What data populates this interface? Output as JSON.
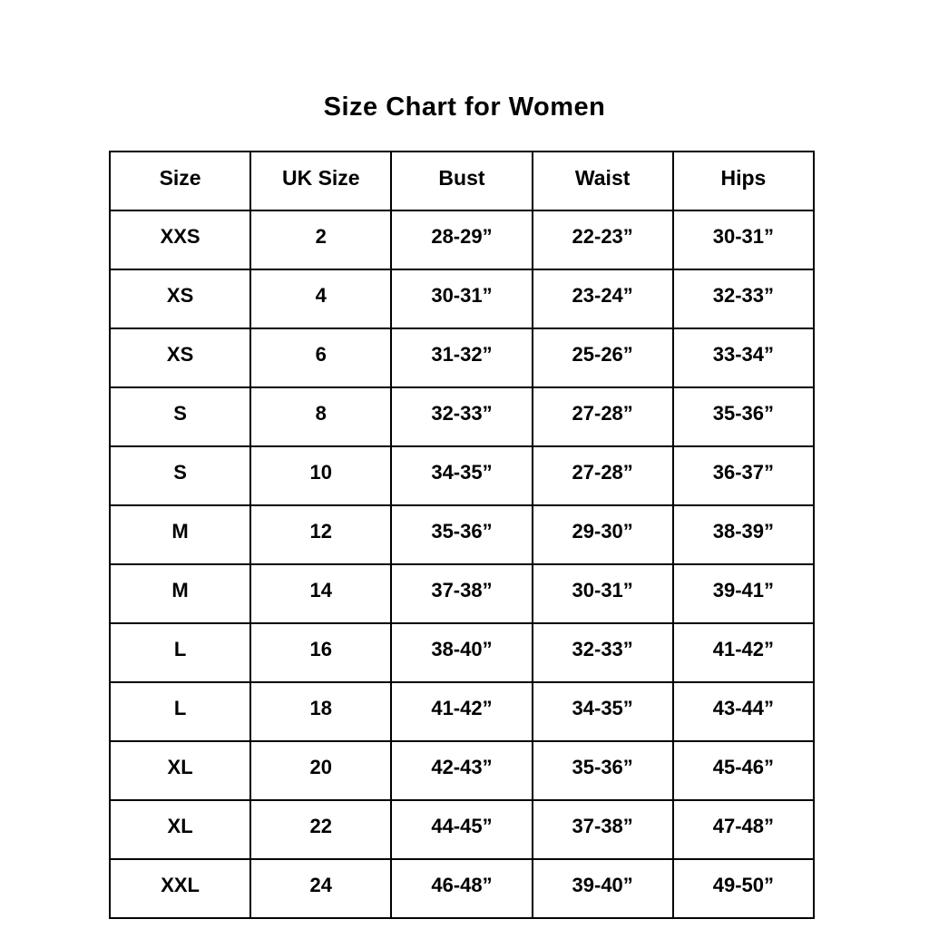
{
  "page": {
    "background_color": "#ffffff",
    "text_color": "#000000",
    "border_color": "#000000"
  },
  "title": "Size Chart for Women",
  "chart_data": {
    "type": "table",
    "title": "Size Chart for Women",
    "headers": [
      "Size",
      "UK Size",
      "Bust",
      "Waist",
      "Hips"
    ],
    "rows": [
      [
        "XXS",
        "2",
        "28-29”",
        "22-23”",
        "30-31”"
      ],
      [
        "XS",
        "4",
        "30-31”",
        "23-24”",
        "32-33”"
      ],
      [
        "XS",
        "6",
        "31-32”",
        "25-26”",
        "33-34”"
      ],
      [
        "S",
        "8",
        "32-33”",
        "27-28”",
        "35-36”"
      ],
      [
        "S",
        "10",
        "34-35”",
        "27-28”",
        "36-37”"
      ],
      [
        "M",
        "12",
        "35-36”",
        "29-30”",
        "38-39”"
      ],
      [
        "M",
        "14",
        "37-38”",
        "30-31”",
        "39-41”"
      ],
      [
        "L",
        "16",
        "38-40”",
        "32-33”",
        "41-42”"
      ],
      [
        "L",
        "18",
        "41-42”",
        "34-35”",
        "43-44”"
      ],
      [
        "XL",
        "20",
        "42-43”",
        "35-36”",
        "45-46”"
      ],
      [
        "XL",
        "22",
        "44-45”",
        "37-38”",
        "47-48”"
      ],
      [
        "XXL",
        "24",
        "46-48”",
        "39-40”",
        "49-50”"
      ]
    ],
    "layout": {
      "columns_equal_width": true,
      "grid": true,
      "text_align": "center"
    }
  }
}
